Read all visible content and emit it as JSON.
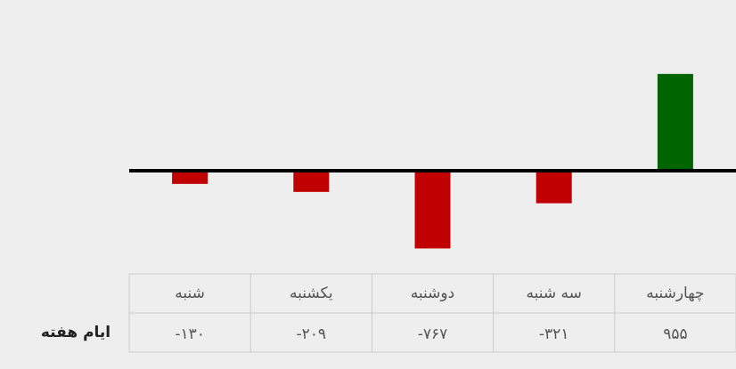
{
  "chart_data": {
    "type": "bar",
    "row_label": "ایام هفته",
    "categories": [
      "شنبه",
      "یکشنبه",
      "دوشنبه",
      "سه شنبه",
      "چهارشنبه"
    ],
    "values": [
      -130,
      -209,
      -767,
      -321,
      955
    ],
    "value_labels": [
      "-۱۳۰",
      "-۲۰۹",
      "-۷۶۷",
      "-۳۲۱",
      "۹۵۵"
    ],
    "colors": {
      "positive": "#006400",
      "negative": "#c00000"
    },
    "ylim": [
      -1000,
      1000
    ]
  }
}
